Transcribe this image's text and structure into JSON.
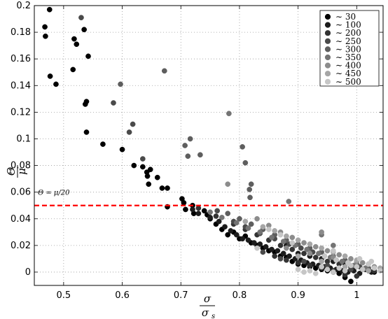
{
  "chart_data": {
    "type": "scatter",
    "title": "",
    "xlabel": {
      "num": "σ",
      "den": "σ",
      "den_sub": "s"
    },
    "ylabel": {
      "num": "Θ",
      "den": "μ"
    },
    "xlim": [
      0.45,
      1.045
    ],
    "ylim": [
      -0.01,
      0.2
    ],
    "xticks": [
      0.5,
      0.6,
      0.7,
      0.8,
      0.9,
      1.0
    ],
    "xtick_labels": [
      "0.5",
      "0.6",
      "0.7",
      "0.8",
      "0.9",
      "1"
    ],
    "yticks": [
      0,
      0.02,
      0.04,
      0.06,
      0.08,
      0.1,
      0.12,
      0.14,
      0.16,
      0.18,
      0.2
    ],
    "ytick_labels": [
      "0",
      "0.02",
      "0.04",
      "0.06",
      "0.08",
      "0.1",
      "0.12",
      "0.14",
      "0.16",
      "0.18",
      "0.2"
    ],
    "grid": true,
    "legend_position": "top-right",
    "reference_line": {
      "y": 0.05,
      "style": "dashed",
      "color": "#ff0000",
      "label": "Θ = μ/20"
    },
    "series": [
      {
        "name": "∼ 30",
        "color": "#000000",
        "points": [
          [
            0.476,
            0.197
          ],
          [
            0.468,
            0.184
          ],
          [
            0.469,
            0.177
          ],
          [
            0.477,
            0.147
          ],
          [
            0.487,
            0.141
          ],
          [
            0.516,
            0.152
          ],
          [
            0.518,
            0.175
          ],
          [
            0.522,
            0.171
          ],
          [
            0.535,
            0.182
          ],
          [
            0.542,
            0.162
          ],
          [
            0.537,
            0.126
          ],
          [
            0.539,
            0.128
          ],
          [
            0.539,
            0.105
          ],
          [
            0.567,
            0.096
          ],
          [
            0.6,
            0.092
          ],
          [
            0.62,
            0.08
          ],
          [
            0.635,
            0.079
          ],
          [
            0.642,
            0.075
          ],
          [
            0.643,
            0.072
          ],
          [
            0.648,
            0.077
          ],
          [
            0.645,
            0.066
          ],
          [
            0.66,
            0.071
          ],
          [
            0.668,
            0.063
          ],
          [
            0.677,
            0.063
          ],
          [
            0.677,
            0.049
          ],
          [
            0.702,
            0.055
          ],
          [
            0.705,
            0.052
          ],
          [
            0.708,
            0.047
          ],
          [
            0.72,
            0.05
          ],
          [
            0.722,
            0.044
          ],
          [
            0.74,
            0.046
          ],
          [
            0.745,
            0.043
          ],
          [
            0.75,
            0.04
          ],
          [
            0.76,
            0.036
          ],
          [
            0.77,
            0.032
          ],
          [
            0.78,
            0.028
          ],
          [
            0.79,
            0.03
          ],
          [
            0.8,
            0.025
          ],
          [
            0.81,
            0.027
          ],
          [
            0.82,
            0.022
          ],
          [
            0.83,
            0.02
          ],
          [
            0.84,
            0.018
          ],
          [
            0.85,
            0.016
          ],
          [
            0.86,
            0.015
          ],
          [
            0.87,
            0.012
          ],
          [
            0.88,
            0.011
          ],
          [
            0.89,
            0.008
          ],
          [
            0.9,
            0.006
          ],
          [
            0.91,
            0.005
          ],
          [
            0.92,
            0.004
          ],
          [
            0.93,
            0.003
          ],
          [
            0.94,
            0.002
          ],
          [
            0.95,
            0.001
          ],
          [
            0.96,
            0.0
          ],
          [
            0.97,
            -0.001
          ],
          [
            0.98,
            -0.004
          ],
          [
            0.99,
            -0.007
          ],
          [
            0.995,
            0.003
          ],
          [
            1.0,
            0.005
          ],
          [
            1.01,
            0.002
          ],
          [
            1.02,
            0.001
          ],
          [
            1.03,
            0.0
          ]
        ]
      },
      {
        "name": "∼ 100",
        "color": "#1c1c1c",
        "points": [
          [
            0.72,
            0.047
          ],
          [
            0.73,
            0.044
          ],
          [
            0.75,
            0.041
          ],
          [
            0.765,
            0.038
          ],
          [
            0.775,
            0.034
          ],
          [
            0.785,
            0.031
          ],
          [
            0.795,
            0.028
          ],
          [
            0.805,
            0.025
          ],
          [
            0.815,
            0.024
          ],
          [
            0.825,
            0.022
          ],
          [
            0.835,
            0.021
          ],
          [
            0.845,
            0.019
          ],
          [
            0.855,
            0.017
          ],
          [
            0.865,
            0.016
          ],
          [
            0.875,
            0.014
          ],
          [
            0.885,
            0.012
          ],
          [
            0.895,
            0.01
          ],
          [
            0.905,
            0.009
          ],
          [
            0.915,
            0.007
          ],
          [
            0.925,
            0.006
          ],
          [
            0.935,
            0.005
          ],
          [
            0.945,
            0.004
          ],
          [
            0.955,
            0.003
          ],
          [
            0.965,
            0.002
          ],
          [
            0.975,
            0.001
          ],
          [
            0.985,
            0.0
          ],
          [
            0.995,
            0.001
          ],
          [
            1.005,
            -0.001
          ],
          [
            1.015,
            0.002
          ],
          [
            1.025,
            0.0
          ],
          [
            0.88,
            0.02
          ],
          [
            0.9,
            0.014
          ],
          [
            0.92,
            0.012
          ],
          [
            0.94,
            0.01
          ],
          [
            0.96,
            0.008
          ],
          [
            0.98,
            0.006
          ]
        ]
      },
      {
        "name": "∼ 200",
        "color": "#333333",
        "points": [
          [
            0.73,
            0.048
          ],
          [
            0.76,
            0.042
          ],
          [
            0.79,
            0.036
          ],
          [
            0.81,
            0.032
          ],
          [
            0.83,
            0.028
          ],
          [
            0.85,
            0.024
          ],
          [
            0.87,
            0.02
          ],
          [
            0.89,
            0.017
          ],
          [
            0.91,
            0.014
          ],
          [
            0.93,
            0.011
          ],
          [
            0.95,
            0.008
          ],
          [
            0.97,
            0.006
          ],
          [
            0.99,
            0.004
          ],
          [
            1.01,
            0.002
          ],
          [
            1.03,
            0.001
          ],
          [
            0.86,
            0.012
          ],
          [
            0.88,
            0.009
          ],
          [
            0.9,
            0.007
          ],
          [
            0.92,
            0.005
          ],
          [
            0.94,
            0.003
          ],
          [
            0.96,
            0.001
          ],
          [
            0.98,
            -0.002
          ],
          [
            1.0,
            -0.003
          ]
        ]
      },
      {
        "name": "∼ 250",
        "color": "#4a4a4a",
        "points": [
          [
            0.53,
            0.191
          ],
          [
            0.585,
            0.127
          ],
          [
            0.612,
            0.105
          ],
          [
            0.618,
            0.111
          ],
          [
            0.635,
            0.085
          ],
          [
            0.762,
            0.046
          ],
          [
            0.79,
            0.038
          ],
          [
            0.81,
            0.034
          ],
          [
            0.835,
            0.029
          ],
          [
            0.86,
            0.025
          ],
          [
            0.885,
            0.021
          ],
          [
            0.905,
            0.018
          ],
          [
            0.925,
            0.015
          ],
          [
            0.945,
            0.012
          ],
          [
            0.965,
            0.009
          ],
          [
            0.985,
            0.007
          ],
          [
            1.005,
            0.004
          ],
          [
            1.02,
            0.002
          ],
          [
            0.84,
            0.015
          ],
          [
            0.87,
            0.01
          ],
          [
            0.91,
            0.008
          ],
          [
            0.95,
            0.005
          ],
          [
            0.99,
            0.002
          ]
        ]
      },
      {
        "name": "∼ 300",
        "color": "#5e5e5e",
        "points": [
          [
            0.597,
            0.141
          ],
          [
            0.672,
            0.151
          ],
          [
            0.707,
            0.095
          ],
          [
            0.712,
            0.087
          ],
          [
            0.716,
            0.1
          ],
          [
            0.733,
            0.088
          ],
          [
            0.805,
            0.094
          ],
          [
            0.81,
            0.082
          ],
          [
            0.817,
            0.062
          ],
          [
            0.818,
            0.056
          ],
          [
            0.82,
            0.066
          ],
          [
            0.78,
            0.044
          ],
          [
            0.8,
            0.04
          ],
          [
            0.82,
            0.036
          ],
          [
            0.84,
            0.032
          ],
          [
            0.86,
            0.028
          ],
          [
            0.88,
            0.024
          ],
          [
            0.9,
            0.021
          ],
          [
            0.92,
            0.018
          ],
          [
            0.94,
            0.015
          ],
          [
            0.96,
            0.012
          ],
          [
            0.98,
            0.009
          ],
          [
            1.0,
            0.006
          ],
          [
            1.02,
            0.003
          ]
        ]
      },
      {
        "name": "∼ 350",
        "color": "#747474",
        "points": [
          [
            0.782,
            0.119
          ],
          [
            0.884,
            0.053
          ],
          [
            0.75,
            0.045
          ],
          [
            0.77,
            0.041
          ],
          [
            0.795,
            0.037
          ],
          [
            0.815,
            0.033
          ],
          [
            0.835,
            0.03
          ],
          [
            0.855,
            0.026
          ],
          [
            0.875,
            0.023
          ],
          [
            0.895,
            0.02
          ],
          [
            0.915,
            0.017
          ],
          [
            0.935,
            0.014
          ],
          [
            0.955,
            0.011
          ],
          [
            0.975,
            0.008
          ],
          [
            0.995,
            0.005
          ],
          [
            1.015,
            0.003
          ],
          [
            0.94,
            0.028
          ],
          [
            0.96,
            0.02
          ]
        ]
      },
      {
        "name": "∼ 400",
        "color": "#8c8c8c",
        "points": [
          [
            0.78,
            0.066
          ],
          [
            0.83,
            0.04
          ],
          [
            0.85,
            0.035
          ],
          [
            0.87,
            0.03
          ],
          [
            0.89,
            0.026
          ],
          [
            0.91,
            0.022
          ],
          [
            0.93,
            0.019
          ],
          [
            0.95,
            0.016
          ],
          [
            0.97,
            0.013
          ],
          [
            0.99,
            0.01
          ],
          [
            1.01,
            0.007
          ],
          [
            1.03,
            0.004
          ],
          [
            0.88,
            0.018
          ],
          [
            0.92,
            0.014
          ],
          [
            0.96,
            0.011
          ],
          [
            1.0,
            0.008
          ],
          [
            0.94,
            0.03
          ]
        ]
      },
      {
        "name": "∼ 450",
        "color": "#a6a6a6",
        "points": [
          [
            0.81,
            0.038
          ],
          [
            0.84,
            0.034
          ],
          [
            0.86,
            0.031
          ],
          [
            0.88,
            0.027
          ],
          [
            0.9,
            0.024
          ],
          [
            0.92,
            0.021
          ],
          [
            0.94,
            0.018
          ],
          [
            0.96,
            0.015
          ],
          [
            0.98,
            0.012
          ],
          [
            1.0,
            0.009
          ],
          [
            1.02,
            0.006
          ],
          [
            1.04,
            0.003
          ],
          [
            0.9,
            0.012
          ],
          [
            0.94,
            0.008
          ],
          [
            0.98,
            0.004
          ],
          [
            1.02,
            0.001
          ]
        ]
      },
      {
        "name": "∼ 500",
        "color": "#c6c6c6",
        "points": [
          [
            0.83,
            0.018
          ],
          [
            0.85,
            0.032
          ],
          [
            0.87,
            0.028
          ],
          [
            0.89,
            0.022
          ],
          [
            0.9,
            0.002
          ],
          [
            0.91,
            0.0
          ],
          [
            0.92,
            0.001
          ],
          [
            0.93,
            -0.001
          ],
          [
            0.94,
            0.004
          ],
          [
            0.95,
            0.002
          ],
          [
            0.96,
            0.0
          ],
          [
            0.97,
            0.003
          ],
          [
            0.98,
            0.001
          ],
          [
            0.99,
            0.005
          ],
          [
            1.0,
            0.004
          ],
          [
            1.01,
            0.002
          ],
          [
            1.02,
            0.006
          ],
          [
            1.03,
            0.003
          ],
          [
            1.04,
            0.001
          ],
          [
            0.945,
            0.012
          ],
          [
            0.965,
            0.009
          ],
          [
            0.985,
            0.007
          ],
          [
            1.005,
            0.01
          ],
          [
            1.025,
            0.008
          ],
          [
            0.96,
            0.016
          ]
        ]
      }
    ]
  }
}
